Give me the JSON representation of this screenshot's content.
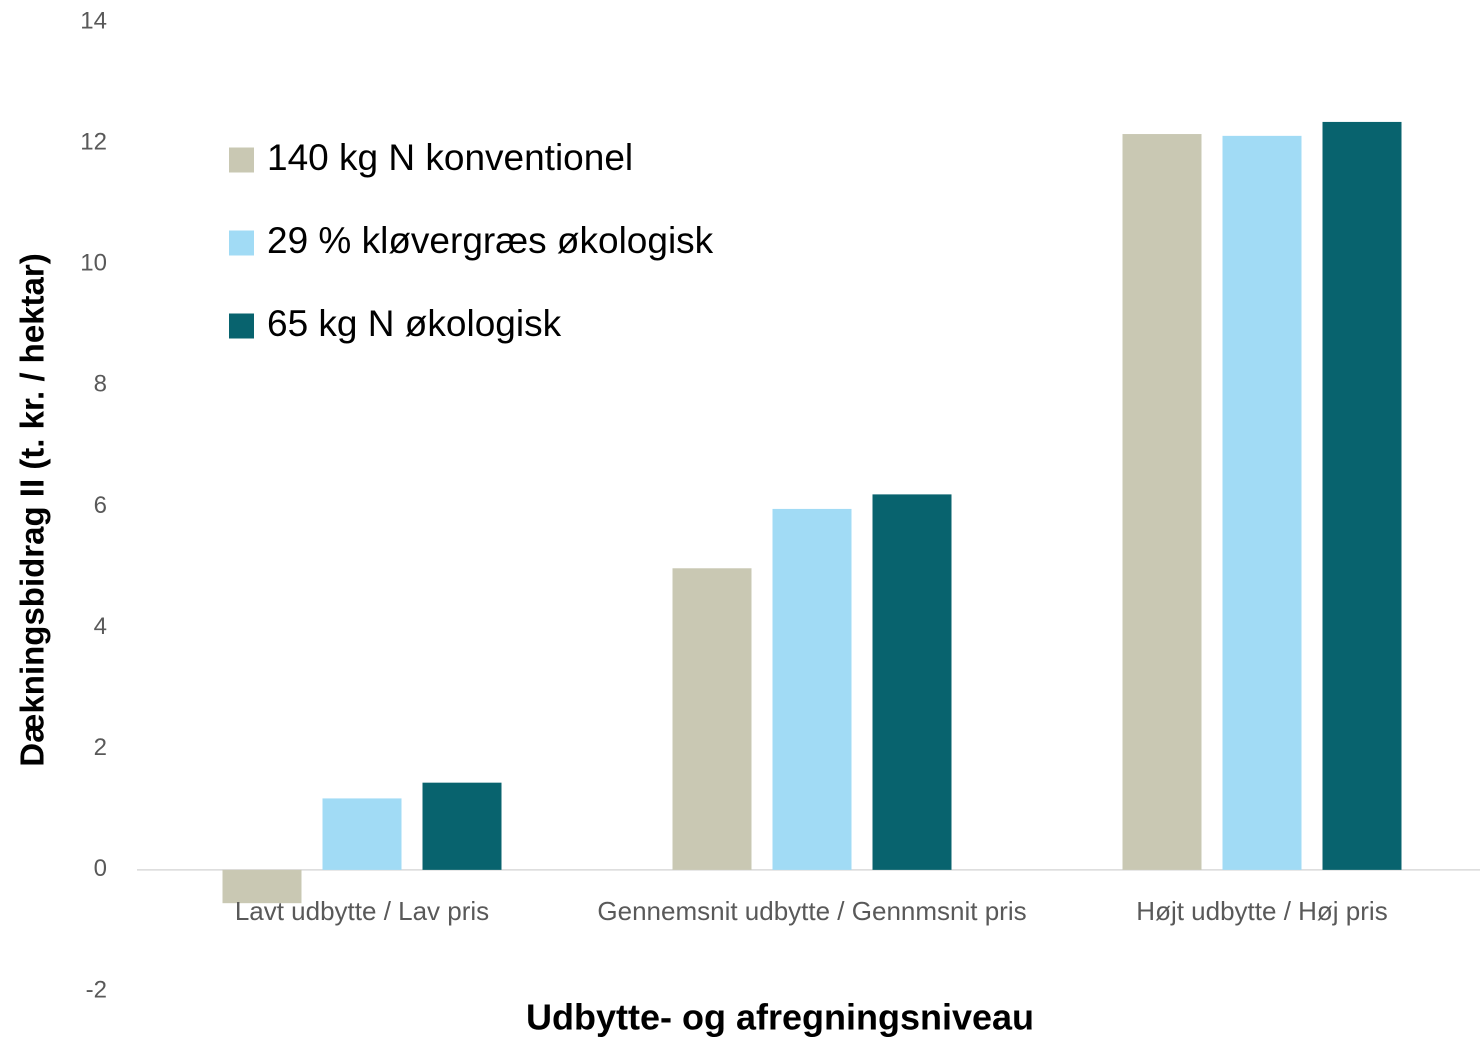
{
  "chart_data": {
    "type": "bar",
    "x_label": "Udbytte- og afregningsniveau",
    "y_label": "Dækningsbidrag II (t. kr. / hektar)",
    "categories": [
      "Lavt udbytte / Lav pris",
      "Gennemsnit udbytte / Gennmsnit pris",
      "Højt udbytte / Høj pris"
    ],
    "series": [
      {
        "name": "140 kg N konventionel",
        "color": "#c9c8b3",
        "values": [
          -0.55,
          4.98,
          12.15
        ]
      },
      {
        "name": "29 % kløvergræs økologisk",
        "color": "#a1dbf5",
        "values": [
          1.18,
          5.96,
          12.12
        ]
      },
      {
        "name": "65 kg N økologisk",
        "color": "#08636e",
        "values": [
          1.44,
          6.2,
          12.35
        ]
      }
    ],
    "ylim": [
      -2,
      14
    ],
    "yticks": [
      -2,
      0,
      2,
      4,
      6,
      8,
      10,
      12,
      14
    ],
    "grid": false,
    "legend": "upper left"
  }
}
